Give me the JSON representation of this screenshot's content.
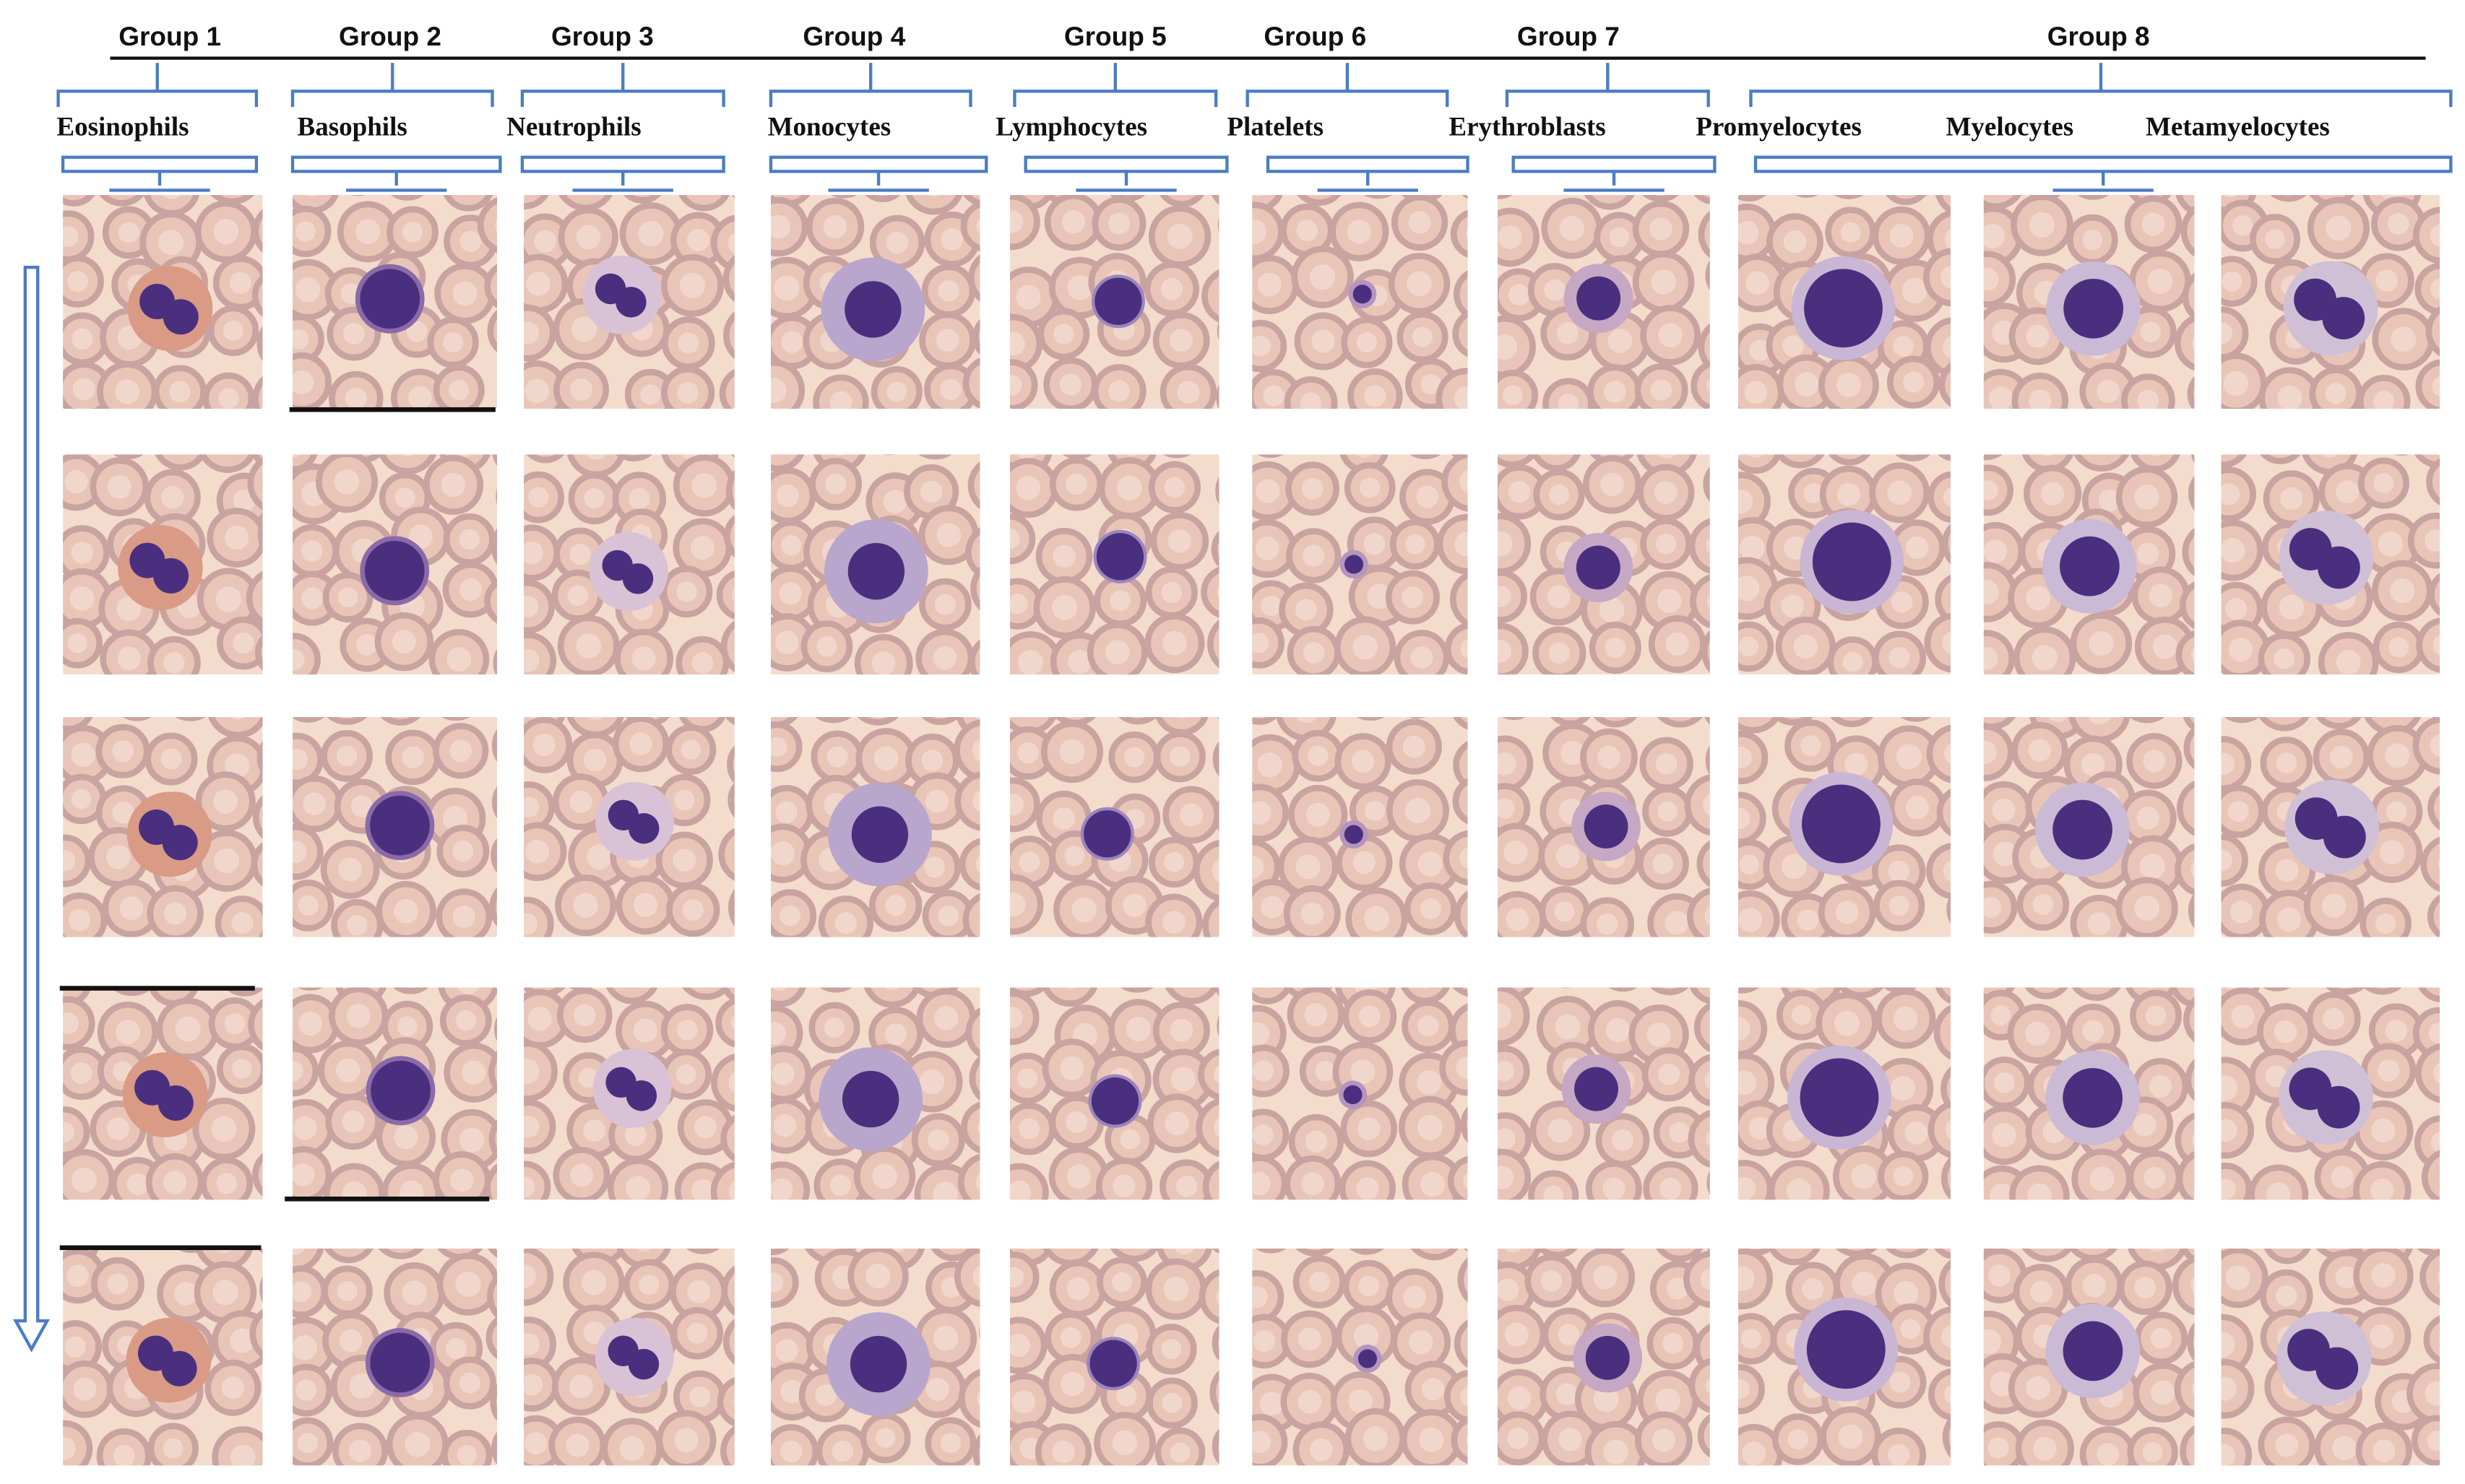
{
  "figure": {
    "groups": [
      {
        "label": "Group 1",
        "cells": [
          "Eosinophils"
        ]
      },
      {
        "label": "Group 2",
        "cells": [
          "Basophils"
        ]
      },
      {
        "label": "Group 3",
        "cells": [
          "Neutrophils"
        ]
      },
      {
        "label": "Group 4",
        "cells": [
          "Monocytes"
        ]
      },
      {
        "label": "Group 5",
        "cells": [
          "Lymphocytes"
        ]
      },
      {
        "label": "Group 6",
        "cells": [
          "Platelets"
        ]
      },
      {
        "label": "Group 7",
        "cells": [
          "Erythroblasts"
        ]
      },
      {
        "label": "Group 8",
        "cells": [
          "Promyelocytes",
          "Myelocytes",
          "Metamyelocytes"
        ]
      }
    ],
    "rows": 5,
    "colors": {
      "background_plasma": "#f4dccd",
      "rbc_fill": "#e9c5b8",
      "rbc_rim": "#c9a3a0",
      "nucleus": "#4a2f7e",
      "cytoplasm_eosinophil": "#d99a86",
      "cytoplasm_monocyte": "#b9a6cc",
      "cytoplasm_generic": "#cdb8d0",
      "bracket": "#4a7dc4",
      "arrow": "#4a7dc4"
    }
  }
}
